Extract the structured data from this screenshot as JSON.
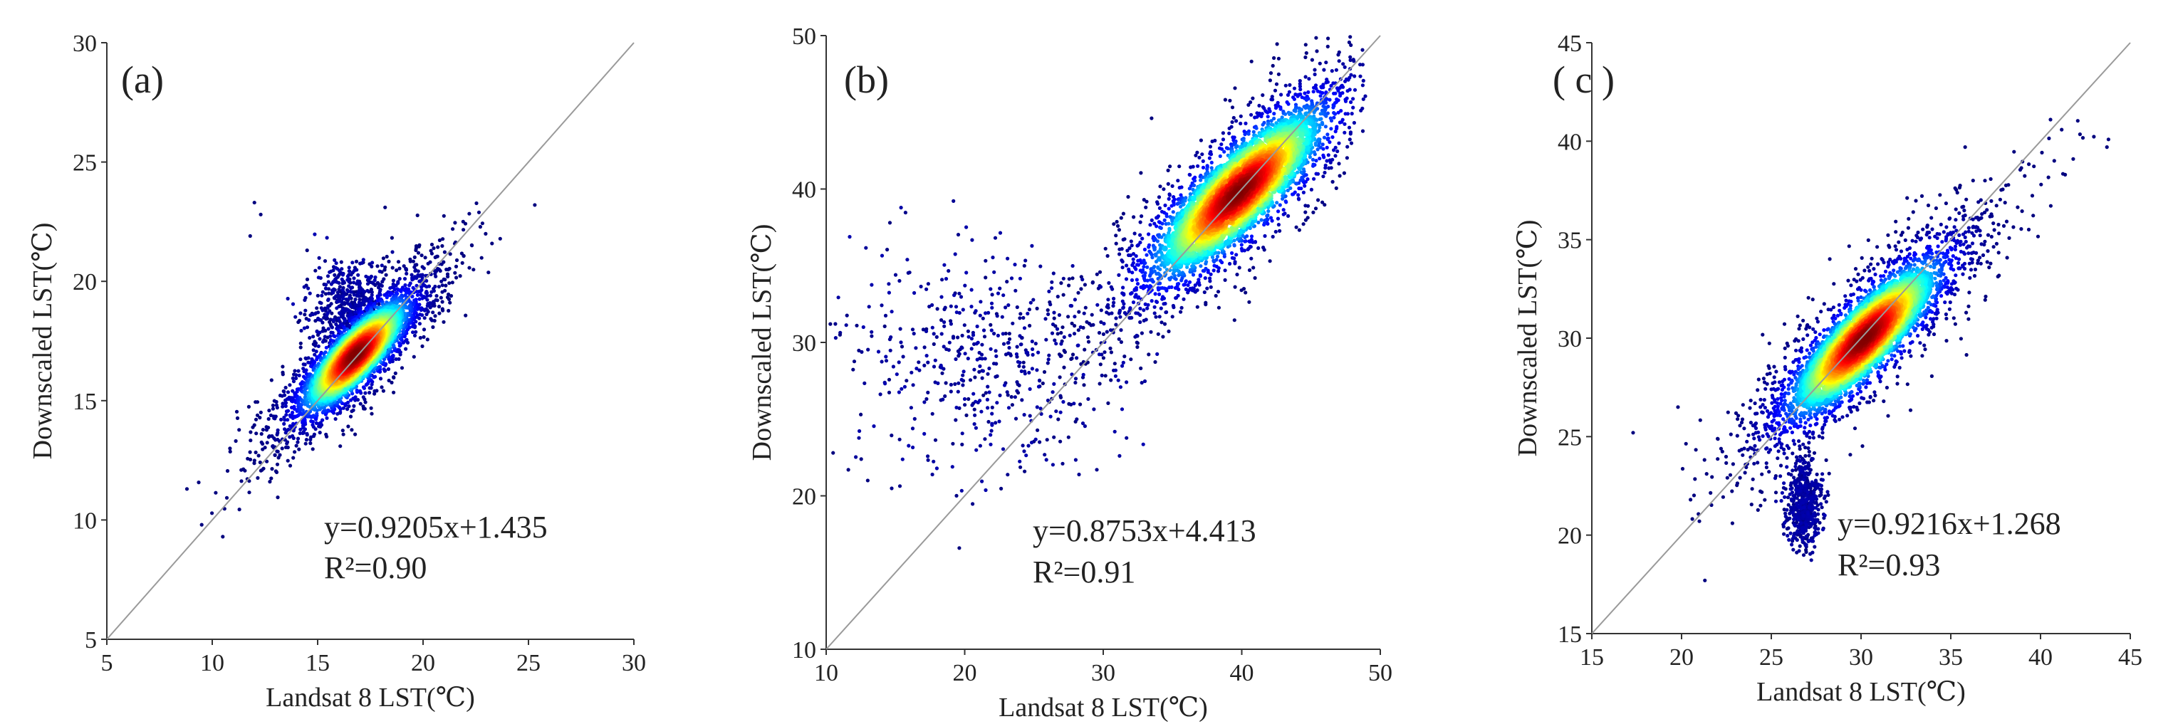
{
  "chart_data": [
    {
      "type": "scatter",
      "panel_label": "(a)",
      "xlabel": "Landsat 8 LST(℃)",
      "ylabel": "Downscaled LST(℃)",
      "xlim": [
        5,
        30
      ],
      "ylim": [
        5,
        30
      ],
      "xticks": [
        "5",
        "10",
        "15",
        "20",
        "25",
        "30"
      ],
      "yticks": [
        "5",
        "10",
        "15",
        "20",
        "25",
        "30"
      ],
      "equation": "y=0.9205x+1.435",
      "r_squared": "R²=0.90",
      "fit": {
        "slope": 0.9205,
        "intercept": 1.435,
        "r2": 0.9
      },
      "one_to_one_line": true,
      "density": {
        "center": [
          16.8,
          16.9
        ],
        "sd_major": 1.7,
        "sd_minor": 0.55,
        "x_range": [
          9,
          25
        ],
        "plume": {
          "center": [
            16.5,
            18.8
          ],
          "sd": [
            0.9,
            1.0
          ]
        }
      },
      "outliers": [
        [
          12,
          23.3
        ],
        [
          12.3,
          22.8
        ],
        [
          14.5,
          21.3
        ],
        [
          18.2,
          23.1
        ],
        [
          25.3,
          23.2
        ],
        [
          11.8,
          21.9
        ],
        [
          10.5,
          9.3
        ],
        [
          9.5,
          9.8
        ],
        [
          8.8,
          11.3
        ]
      ]
    },
    {
      "type": "scatter",
      "panel_label": "(b)",
      "xlabel": "Landsat 8 LST(℃)",
      "ylabel": "Downscaled LST(℃)",
      "xlim": [
        10,
        50
      ],
      "ylim": [
        10,
        50
      ],
      "xticks": [
        "10",
        "20",
        "30",
        "40",
        "50"
      ],
      "yticks": [
        "10",
        "20",
        "30",
        "40",
        "50"
      ],
      "equation": "y=0.8753x+4.413",
      "r_squared": "R²=0.91",
      "fit": {
        "slope": 0.8753,
        "intercept": 4.413,
        "r2": 0.91
      },
      "one_to_one_line": true,
      "density": {
        "center": [
          39.8,
          39.8
        ],
        "sd_major": 4.2,
        "sd_minor": 1.3,
        "x_range": [
          14,
          49
        ],
        "plume": {
          "center": [
            22,
            29
          ],
          "sd": [
            5.0,
            3.5
          ]
        }
      },
      "outliers": [
        [
          14.6,
          37.8
        ],
        [
          10.3,
          31.2
        ],
        [
          10.5,
          22.8
        ],
        [
          11.6,
          21.7
        ],
        [
          12.5,
          25.3
        ],
        [
          13,
          21
        ],
        [
          11,
          30.5
        ]
      ]
    },
    {
      "type": "scatter",
      "panel_label": "( c )",
      "xlabel": "Landsat 8 LST(℃)",
      "ylabel": "Downscaled LST(℃)",
      "xlim": [
        15,
        45
      ],
      "ylim": [
        15,
        45
      ],
      "xticks": [
        "15",
        "20",
        "25",
        "30",
        "35",
        "40",
        "45"
      ],
      "yticks": [
        "15",
        "20",
        "25",
        "30",
        "35",
        "40",
        "45"
      ],
      "equation": "y=0.9216x+1.268",
      "r_squared": "R²=0.93",
      "fit": {
        "slope": 0.9216,
        "intercept": 1.268,
        "r2": 0.93
      },
      "one_to_one_line": true,
      "density": {
        "center": [
          30.2,
          30.0
        ],
        "sd_major": 2.9,
        "sd_minor": 0.85,
        "x_range": [
          20,
          44
        ],
        "plume": {
          "center": [
            26.8,
            21.5
          ],
          "sd": [
            0.5,
            1.1
          ]
        }
      },
      "outliers": [
        [
          17.3,
          25.2
        ],
        [
          21.3,
          17.7
        ],
        [
          35.8,
          39.7
        ],
        [
          43.7,
          39.7
        ],
        [
          19.8,
          26.5
        ],
        [
          20.5,
          21.8
        ]
      ]
    }
  ],
  "colormap": [
    "#00007f",
    "#0000ff",
    "#0080ff",
    "#00ffff",
    "#80ff80",
    "#ffff00",
    "#ff8000",
    "#ff0000",
    "#7f0000"
  ]
}
